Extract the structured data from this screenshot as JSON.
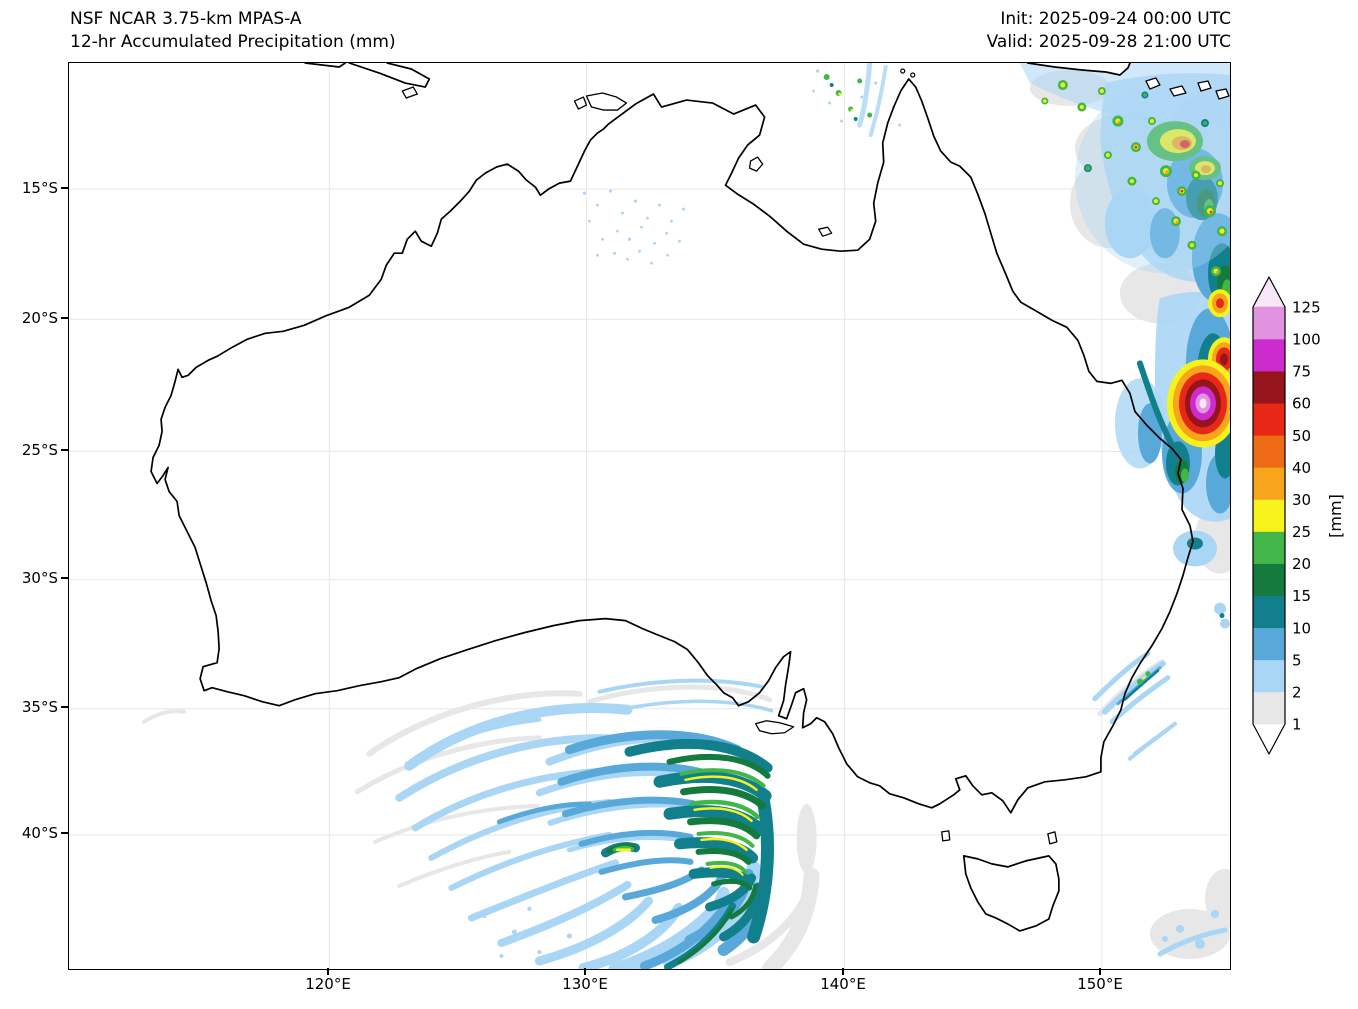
{
  "header": {
    "title_line1": "NSF NCAR 3.75-km MPAS-A",
    "title_line2": "12-hr Accumulated Precipitation (mm)",
    "init_label": "Init: 2025-09-24 00:00 UTC",
    "valid_label": "Valid: 2025-09-28 21:00 UTC"
  },
  "axes": {
    "y_ticks": [
      "15°S",
      "20°S",
      "25°S",
      "30°S",
      "35°S",
      "40°S"
    ],
    "x_ticks": [
      "120°E",
      "130°E",
      "140°E",
      "150°E"
    ]
  },
  "colorbar": {
    "unit_label": "[mm]",
    "tick_labels": [
      "1",
      "2",
      "5",
      "10",
      "15",
      "20",
      "25",
      "30",
      "40",
      "50",
      "60",
      "75",
      "100",
      "125"
    ],
    "colors_bottom_to_top": [
      "#ffffff",
      "#e7e7e7",
      "#aad6f5",
      "#58a9da",
      "#12808c",
      "#157a3d",
      "#41b649",
      "#f6f21b",
      "#f8a51b",
      "#ef6c17",
      "#e82817",
      "#96141c",
      "#cd2bcd",
      "#e293e0",
      "#f6e6f8"
    ]
  },
  "chart_data": {
    "type": "heatmap",
    "title": "NSF NCAR 3.75-km MPAS-A — 12-hr Accumulated Precipitation (mm)",
    "init_time": "2025-09-24 00:00 UTC",
    "valid_time": "2025-09-28 21:00 UTC",
    "region": "Australia",
    "lon_range_deg_e": [
      110,
      155
    ],
    "lat_range_deg_s": [
      10,
      45
    ],
    "x_tick_values_deg_e": [
      120,
      130,
      140,
      150
    ],
    "y_tick_values_deg_s": [
      15,
      20,
      25,
      30,
      35,
      40
    ],
    "colorbar_levels_mm": [
      1,
      2,
      5,
      10,
      15,
      20,
      25,
      30,
      40,
      50,
      60,
      75,
      100,
      125
    ],
    "colorbar_unit": "mm",
    "grid": true,
    "features": [
      {
        "name": "southern-ocean-cyclone",
        "description": "Large comma-shaped spiral rainband over the Great Australian Bight and Southern Ocean south of Australia",
        "approx_center_lon_e": 132,
        "approx_center_lat_s": 40,
        "peak_intensity_mm": "25-30 (yellow cores in the eastern spiral bands)"
      },
      {
        "name": "queensland-coast-heavy-rain",
        "description": "Intense rain area along and offshore of the central/southern Queensland coast",
        "approx_center_lon_e": 153.5,
        "approx_center_lat_s": 23.5,
        "peak_intensity_mm": ">125 (violet/magenta core)"
      },
      {
        "name": "coral-sea-convective-cells",
        "description": "Scattered convective cells with 20-60 mm cores over the Coral Sea northeast of Queensland",
        "approx_lon_e": "148-155",
        "approx_lat_s": "11-18",
        "peak_intensity_mm": "60-75"
      },
      {
        "name": "arafura-sea-showers",
        "description": "Small shower cells north of the Top End near the top edge of the domain",
        "approx_lon_e": "139-142",
        "approx_lat_s": "10-13",
        "peak_intensity_mm": "20-30"
      },
      {
        "name": "nsw-coast-showers",
        "description": "Small band of light showers off the New South Wales coast",
        "approx_lon_e": "150-152",
        "approx_lat_s": "33-36",
        "peak_intensity_mm": "15-25"
      },
      {
        "name": "interior-drizzle-speckles",
        "description": "Very light 1-2 mm speckles over the NT/WA interior",
        "approx_lon_e": "130-134",
        "approx_lat_s": "15-18",
        "peak_intensity_mm": "2"
      },
      {
        "name": "tasman-sea-light-rain",
        "description": "Patchy light rain east and southeast of Tasmania near the bottom-right corner",
        "approx_lon_e": "152-155",
        "approx_lat_s": "42-45",
        "peak_intensity_mm": "5"
      }
    ]
  }
}
